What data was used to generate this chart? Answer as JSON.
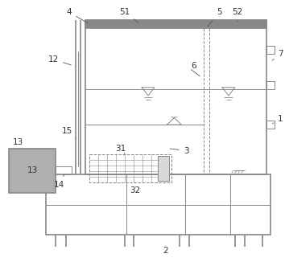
{
  "fig_width": 3.54,
  "fig_height": 3.31,
  "dpi": 100,
  "bg_color": "#ffffff",
  "lc": "#888888",
  "lc_dark": "#555555",
  "fc_gray": "#b0b0b0",
  "lw_main": 1.2,
  "lw_thin": 0.7,
  "fs": 7.5
}
